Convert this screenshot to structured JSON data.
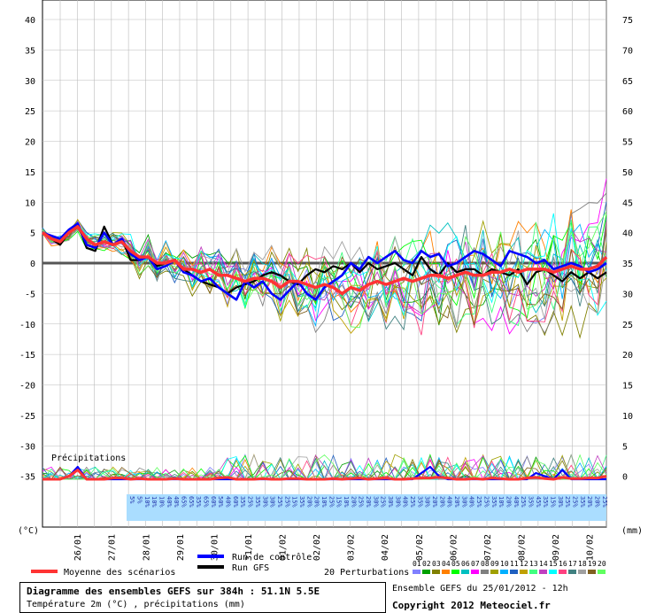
{
  "chart_data": {
    "type": "line",
    "title": "Diagramme des ensembles GEFS sur 384h : 51.1N 5.5E",
    "subtitle": "Température 2m (°C) , précipitations (mm)",
    "source": "Ensemble GEFS du 25/01/2012 - 12h",
    "copyright": "Copyright 2012 Meteociel.fr",
    "y_left_label": "(°C)",
    "y_right_label": "(mm)",
    "y_left_ticks": [
      40,
      35,
      30,
      25,
      20,
      15,
      10,
      5,
      0,
      -5,
      -10,
      -15,
      -20,
      -25,
      -30,
      -35
    ],
    "y_right_ticks": [
      75,
      70,
      65,
      60,
      55,
      50,
      45,
      40,
      35,
      30,
      25,
      20,
      15,
      10,
      5,
      0
    ],
    "x_ticks": [
      "26/01",
      "27/01",
      "28/01",
      "29/01",
      "30/01",
      "31/01",
      "01/02",
      "02/02",
      "03/02",
      "04/02",
      "05/02",
      "06/02",
      "07/02",
      "08/02",
      "09/02",
      "10/02"
    ],
    "precip_label": "Précipitations",
    "prob_values": [
      "5%",
      "5%",
      "10%",
      "10%",
      "10%",
      "40%",
      "40%",
      "65%",
      "65%",
      "35%",
      "65%",
      "60%",
      "50%",
      "40%",
      "60%",
      "35%",
      "25%",
      "35%",
      "30%",
      "30%",
      "25%",
      "25%",
      "15%",
      "35%",
      "20%",
      "20%",
      "10%",
      "25%",
      "15%",
      "10%",
      "20%",
      "25%",
      "20%",
      "30%",
      "25%",
      "30%",
      "30%",
      "40%",
      "25%",
      "35%",
      "30%",
      "20%",
      "20%",
      "40%",
      "20%",
      "30%",
      "40%",
      "25%",
      "25%",
      "35%",
      "10%",
      "20%",
      "40%",
      "25%",
      "35%",
      "45%",
      "35%",
      "15%",
      "30%",
      "25%",
      "25%",
      "35%",
      "20%",
      "20%",
      "25%"
    ],
    "legend": {
      "mean": "Moyenne des scénarios",
      "control": "Run de contrôle",
      "gfs": "Run GFS",
      "perturbations": "20 Perturbations",
      "pert_ids": [
        "01",
        "02",
        "03",
        "04",
        "05",
        "06",
        "07",
        "08",
        "09",
        "10",
        "11",
        "12",
        "13",
        "14",
        "15",
        "16",
        "17",
        "18",
        "19",
        "20"
      ]
    },
    "colors": {
      "mean": "#ff3333",
      "control": "#0000ff",
      "gfs": "#000000",
      "zero_line": "#555555",
      "grid": "#bbbbbb",
      "prob_band": "#aaddff",
      "perturbations": [
        "#8080ff",
        "#00a000",
        "#808000",
        "#ff8000",
        "#00ff00",
        "#00c0c0",
        "#ff00ff",
        "#808080",
        "#a0a000",
        "#00b0ff",
        "#2060c0",
        "#c0a000",
        "#40ff80",
        "#c040c0",
        "#00ffff",
        "#ff4080",
        "#408080",
        "#a0a0a0",
        "#806020",
        "#60ff60"
      ]
    },
    "series": {
      "mean": [
        5,
        4,
        3.5,
        5,
        6,
        4,
        3,
        3.5,
        3,
        3.5,
        2,
        1,
        1,
        0,
        0,
        0.5,
        -1,
        -1,
        -1.5,
        -1,
        -2,
        -2,
        -2.5,
        -3,
        -2.5,
        -2.5,
        -3,
        -4,
        -3,
        -3,
        -3.5,
        -4,
        -3.5,
        -4,
        -5,
        -4,
        -4.5,
        -3.5,
        -3,
        -3.5,
        -3,
        -2.5,
        -3,
        -2.5,
        -2,
        -2,
        -2.5,
        -2,
        -1.5,
        -2,
        -2,
        -1.5,
        -1.5,
        -1,
        -1.5,
        -1,
        -1,
        -1,
        -1.5,
        -1,
        -0.5,
        -1,
        -1,
        -0.5,
        1
      ],
      "control": [
        5,
        4.5,
        4,
        5.5,
        6.5,
        3,
        2.5,
        5,
        3,
        4,
        1.5,
        0.5,
        1,
        -1,
        -0.5,
        0.5,
        -1.5,
        -2,
        -3,
        -2.5,
        -4,
        -5,
        -6,
        -3,
        -4,
        -3,
        -5,
        -6,
        -4.5,
        -3,
        -5,
        -6,
        -4,
        -3,
        -2,
        0,
        -1,
        1,
        0,
        1,
        2,
        0.5,
        0,
        2,
        1,
        1.5,
        -0.5,
        0,
        1,
        2,
        1.5,
        0.5,
        -0.5,
        2,
        1.5,
        1,
        0,
        0.5,
        -1,
        -0.5,
        0,
        -0.5,
        -1.5,
        -1,
        0
      ],
      "gfs": [
        5,
        4,
        3,
        5,
        6.5,
        2.5,
        2,
        6,
        3,
        4,
        0.5,
        0.5,
        1,
        -0.5,
        0,
        0.5,
        -1,
        -2,
        -3,
        -3.5,
        -4,
        -5,
        -4,
        -3.5,
        -3,
        -2,
        -1.5,
        -2,
        -3,
        -3.5,
        -2,
        -1,
        -1.5,
        -0.5,
        -1,
        0,
        -1.5,
        0,
        -1,
        -0.5,
        0,
        -1,
        -2,
        1,
        -1,
        -2,
        0,
        -1.5,
        -1,
        -1,
        -2,
        -1,
        -1.5,
        -2,
        -1,
        -3.5,
        -1.5,
        -1,
        -2,
        -3,
        -1.5,
        -2.5,
        -1.5,
        -2.5,
        -1.5
      ],
      "precip_mean": [
        0,
        0,
        0,
        0.5,
        1.5,
        0,
        0,
        0,
        0.2,
        0.2,
        0,
        0.1,
        0,
        0,
        0,
        0.1,
        0,
        0,
        0,
        0,
        0.2,
        0.3,
        0,
        0,
        0,
        0.1,
        0,
        0,
        0.1,
        0.1,
        0,
        0,
        0,
        0.1,
        0,
        0.1,
        0.2,
        0,
        0.1,
        0.2,
        0,
        0,
        0.1,
        0.2,
        0.2,
        0.3,
        0.2,
        0,
        0,
        0.1,
        0,
        0.2,
        0.1,
        0,
        0,
        0.2,
        0.3,
        0.1,
        0,
        0.3,
        0.1,
        0.1,
        0.2,
        0.2,
        0.5
      ],
      "precip_control": [
        0,
        0,
        0,
        0.5,
        2,
        0,
        0,
        0,
        0,
        0,
        0,
        0,
        0,
        0,
        0,
        0,
        0,
        0,
        0,
        0,
        0,
        0,
        0,
        0,
        0,
        0,
        0,
        0,
        0,
        0,
        0,
        0,
        0,
        0,
        0,
        0,
        0,
        0,
        0,
        0,
        0,
        0,
        0,
        1,
        2,
        0.5,
        0,
        0,
        0,
        0,
        0,
        0,
        0,
        0,
        0,
        0,
        1,
        0.5,
        0,
        1.5,
        0,
        0,
        0,
        0,
        0
      ]
    },
    "ylim_temp": [
      -35,
      40
    ],
    "ylim_precip": [
      0,
      75
    ]
  }
}
